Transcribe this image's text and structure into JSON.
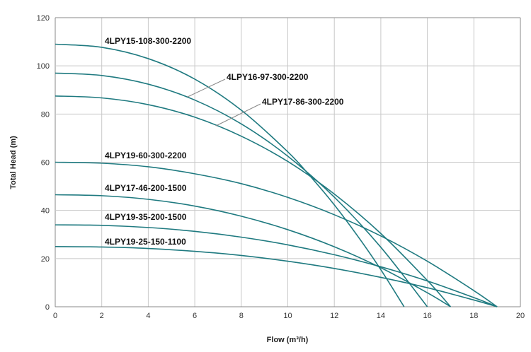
{
  "chart_data": {
    "type": "line",
    "title": "",
    "xlabel": "Flow (m³/h)",
    "ylabel": "Total Head (m)",
    "xlim": [
      0,
      20
    ],
    "ylim": [
      0,
      120
    ],
    "xticks": [
      0,
      2,
      4,
      6,
      8,
      10,
      12,
      14,
      16,
      18,
      20
    ],
    "yticks": [
      0,
      20,
      40,
      60,
      80,
      100,
      120
    ],
    "grid": true,
    "line_color": "#1f7a80",
    "series": [
      {
        "name": "4LPY15-108-300-2200",
        "x": [
          0,
          2,
          4,
          6,
          8,
          10,
          11,
          12,
          13,
          14,
          15
        ],
        "values": [
          109,
          107.7,
          103.0,
          94.5,
          81.6,
          64.3,
          53.8,
          42.3,
          29.4,
          15.4,
          0
        ]
      },
      {
        "name": "4LPY16-97-300-2200",
        "x": [
          0,
          2,
          4,
          6,
          8,
          10,
          12,
          14,
          16
        ],
        "values": [
          97,
          96.0,
          92.4,
          85.8,
          75.9,
          62.5,
          45.5,
          24.7,
          0
        ]
      },
      {
        "name": "4LPY17-86-300-2200",
        "x": [
          0,
          2,
          4,
          6,
          8,
          10,
          12,
          14,
          16,
          17
        ],
        "values": [
          87.5,
          86.7,
          83.9,
          78.7,
          70.8,
          60.3,
          46.8,
          30.4,
          10.9,
          0
        ]
      },
      {
        "name": "4LPY19-60-300-2200",
        "x": [
          0,
          2,
          4,
          6,
          8,
          10,
          12,
          14,
          16,
          18,
          19
        ],
        "values": [
          60,
          59.6,
          58.1,
          55.2,
          51.1,
          45.4,
          38.2,
          29.4,
          18.9,
          6.7,
          0
        ]
      },
      {
        "name": "4LPY17-46-200-1500",
        "x": [
          0,
          2,
          4,
          6,
          8,
          10,
          12,
          14,
          16,
          17
        ],
        "values": [
          46.5,
          46.1,
          44.6,
          41.8,
          37.6,
          32.0,
          24.9,
          16.2,
          5.8,
          0
        ]
      },
      {
        "name": "4LPY19-35-200-1500",
        "x": [
          0,
          2,
          4,
          6,
          8,
          10,
          12,
          14,
          16,
          18,
          19
        ],
        "values": [
          34,
          33.8,
          32.9,
          31.3,
          28.9,
          25.7,
          21.6,
          16.6,
          10.7,
          3.8,
          0
        ]
      },
      {
        "name": "4LPY19-25-150-1100",
        "x": [
          0,
          2,
          4,
          6,
          8,
          10,
          12,
          14,
          16,
          18,
          19
        ],
        "values": [
          25,
          24.8,
          24.2,
          23.0,
          21.3,
          18.9,
          15.9,
          12.2,
          7.9,
          2.8,
          0
        ]
      }
    ]
  }
}
